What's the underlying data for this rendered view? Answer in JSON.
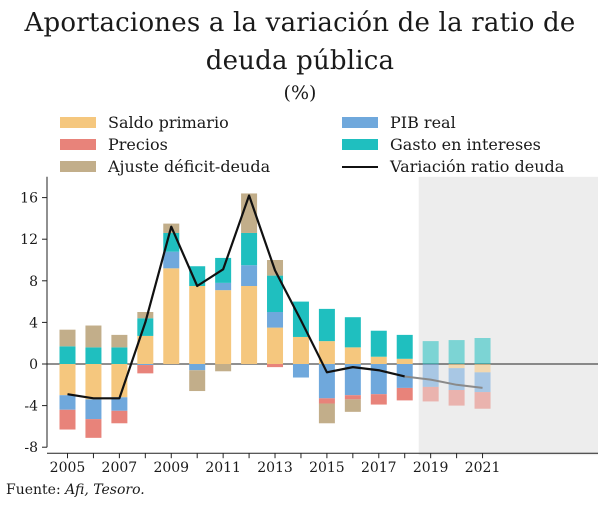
{
  "title": "Aportaciones a la variación de la ratio de deuda pública",
  "subtitle": "(%)",
  "source": {
    "prefix": "Fuente: ",
    "text": "Afi, Tesoro."
  },
  "chart_data": {
    "type": "bar",
    "title": "Aportaciones a la variación de la ratio de deuda pública",
    "subtitle": "(%)",
    "stacked": true,
    "years": [
      2005,
      2006,
      2007,
      2008,
      2009,
      2010,
      2011,
      2012,
      2013,
      2014,
      2015,
      2016,
      2017,
      2018,
      2019,
      2020,
      2021
    ],
    "x_tick_labels": [
      "2005",
      "2007",
      "2009",
      "2011",
      "2013",
      "2015",
      "2017",
      "2019",
      "2021"
    ],
    "ylim": [
      -8,
      18
    ],
    "y_ticks": [
      -8,
      -4,
      0,
      4,
      8,
      12,
      16
    ],
    "forecast_from": 2019,
    "legend_position": "top",
    "series": [
      {
        "name": "Saldo primario",
        "color": "#F5C77E",
        "values": [
          -3.0,
          -3.4,
          -3.2,
          2.7,
          9.2,
          7.5,
          7.1,
          7.5,
          3.5,
          2.6,
          2.2,
          1.6,
          0.7,
          0.5,
          0.0,
          -0.4,
          -0.8
        ]
      },
      {
        "name": "PIB real",
        "color": "#6FA8DC",
        "values": [
          -1.4,
          -1.9,
          -1.3,
          -0.1,
          1.6,
          -0.6,
          0.7,
          2.0,
          1.5,
          -1.3,
          -3.3,
          -3.0,
          -2.9,
          -2.3,
          -2.2,
          -2.1,
          -1.9
        ]
      },
      {
        "name": "Precios",
        "color": "#E8837A",
        "values": [
          -1.9,
          -1.8,
          -1.2,
          -0.8,
          0.0,
          0.0,
          0.0,
          0.0,
          -0.3,
          0.0,
          -0.5,
          -0.4,
          -1.0,
          -1.2,
          -1.4,
          -1.5,
          -1.6
        ]
      },
      {
        "name": "Gasto en intereses",
        "color": "#1FBFBF",
        "values": [
          1.7,
          1.6,
          1.6,
          1.7,
          1.8,
          1.9,
          2.4,
          3.1,
          3.5,
          3.4,
          3.1,
          2.9,
          2.5,
          2.3,
          2.2,
          2.3,
          2.5
        ]
      },
      {
        "name": "Ajuste déficit-deuda",
        "color": "#C2AE8A",
        "values": [
          1.6,
          2.1,
          1.2,
          0.6,
          0.9,
          -2.0,
          -0.7,
          3.8,
          1.5,
          0.0,
          -1.9,
          -1.2,
          0.0,
          0.0,
          0.0,
          0.0,
          0.0
        ]
      }
    ],
    "line": {
      "name": "Variación ratio deuda",
      "color": "#111111",
      "values": [
        -2.9,
        -3.3,
        -3.3,
        4.0,
        13.2,
        7.5,
        9.1,
        16.2,
        9.0,
        4.2,
        -0.8,
        -0.3,
        -0.6,
        -1.2,
        -1.5,
        -2.0,
        -2.3
      ]
    }
  }
}
